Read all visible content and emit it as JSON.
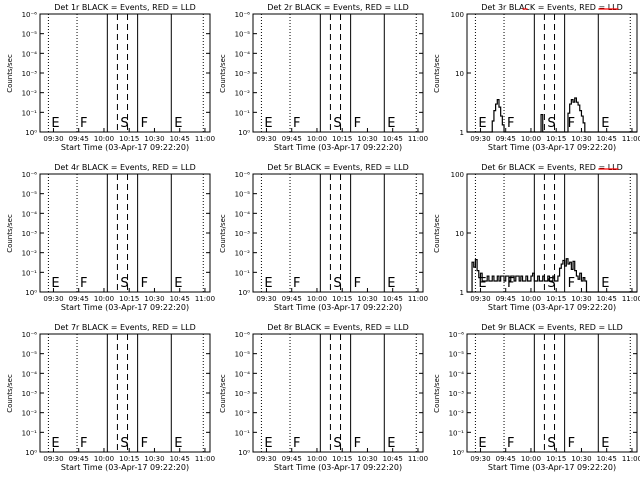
{
  "chart_data": {
    "type": "line",
    "x_unit": "clock time (UT)",
    "xticks": [
      "09:30",
      "09:45",
      "10:00",
      "10:15",
      "10:30",
      "10:45",
      "11:00"
    ],
    "xlabel": "Start Time (03-Apr-17 09:22:20)",
    "ylabel": "Counts/sec",
    "colors": {
      "events": "#000000",
      "lld": "#ff0000"
    },
    "event_marks": [
      {
        "time": "09:27",
        "label": "E",
        "style": "dotted"
      },
      {
        "time": "09:44",
        "label": "F",
        "style": "dotted"
      },
      {
        "time": "10:02",
        "label": "",
        "style": "solid"
      },
      {
        "time": "10:08",
        "label": "S",
        "style": "dashed"
      },
      {
        "time": "10:14",
        "label": "",
        "style": "dashed"
      },
      {
        "time": "10:20",
        "label": "F",
        "style": "solid"
      },
      {
        "time": "10:40",
        "label": "E",
        "style": "solid"
      },
      {
        "time": "10:59",
        "label": "",
        "style": "dotted"
      }
    ],
    "panels": [
      {
        "title": "Det 1r BLACK = Events, RED = LLD",
        "scale": "log",
        "yticks": [
          "10⁰",
          "10⁻¹",
          "10⁻²",
          "10⁻³",
          "10⁻⁴",
          "10⁻⁵",
          "10⁻⁶"
        ],
        "events": [],
        "lld": []
      },
      {
        "title": "Det 2r BLACK = Events, RED = LLD",
        "scale": "log",
        "yticks": [
          "10⁰",
          "10⁻¹",
          "10⁻²",
          "10⁻³",
          "10⁻⁴",
          "10⁻⁵",
          "10⁻⁶"
        ],
        "events": [],
        "lld": []
      },
      {
        "title": "Det 3r BLACK = Events, RED = LLD",
        "scale": "log",
        "ylim": [
          1,
          100
        ],
        "yticks": [
          "1",
          "10",
          "100"
        ],
        "events": [
          [
            "09:22",
            1.0
          ],
          [
            "09:36",
            1.0
          ],
          [
            "09:37",
            1.5
          ],
          [
            "09:38",
            2.2
          ],
          [
            "09:39",
            2.8
          ],
          [
            "09:40",
            3.3
          ],
          [
            "09:41",
            2.5
          ],
          [
            "09:42",
            1.8
          ],
          [
            "09:43",
            1.3
          ],
          [
            "09:44",
            1.0
          ],
          [
            "10:05",
            1.0
          ],
          [
            "10:06",
            1.9
          ],
          [
            "10:07",
            1.0
          ],
          [
            "10:21",
            1.0
          ],
          [
            "10:22",
            2.0
          ],
          [
            "10:23",
            2.8
          ],
          [
            "10:24",
            3.3
          ],
          [
            "10:25",
            3.0
          ],
          [
            "10:26",
            3.5
          ],
          [
            "10:27",
            3.0
          ],
          [
            "10:28",
            2.7
          ],
          [
            "10:29",
            2.2
          ],
          [
            "10:30",
            1.8
          ],
          [
            "10:31",
            1.4
          ],
          [
            "10:32",
            1.0
          ],
          [
            "11:03",
            1.0
          ]
        ],
        "lld": [
          [
            "09:55",
            100
          ],
          [
            "09:58",
            100
          ],
          [
            "10:40",
            100
          ],
          [
            "10:52",
            100
          ]
        ]
      },
      {
        "title": "Det 4r BLACK = Events, RED = LLD",
        "scale": "log",
        "yticks": [
          "10⁰",
          "10⁻¹",
          "10⁻²",
          "10⁻³",
          "10⁻⁴",
          "10⁻⁵",
          "10⁻⁶"
        ],
        "events": [],
        "lld": []
      },
      {
        "title": "Det 5r BLACK = Events, RED = LLD",
        "scale": "log",
        "yticks": [
          "10⁰",
          "10⁻¹",
          "10⁻²",
          "10⁻³",
          "10⁻⁴",
          "10⁻⁵",
          "10⁻⁶"
        ],
        "events": [],
        "lld": []
      },
      {
        "title": "Det 6r BLACK = Events, RED = LLD",
        "scale": "log",
        "ylim": [
          1,
          100
        ],
        "yticks": [
          "1",
          "10",
          "100"
        ],
        "events": [
          [
            "09:22",
            1.0
          ],
          [
            "09:24",
            1.0
          ],
          [
            "09:25",
            3.0
          ],
          [
            "09:26",
            2.5
          ],
          [
            "09:27",
            3.3
          ],
          [
            "09:28",
            2.2
          ],
          [
            "09:29",
            1.7
          ],
          [
            "09:30",
            2.0
          ],
          [
            "09:31",
            1.5
          ],
          [
            "09:33",
            1.5
          ],
          [
            "09:34",
            1.8
          ],
          [
            "09:35",
            1.5
          ],
          [
            "09:37",
            1.8
          ],
          [
            "09:38",
            1.5
          ],
          [
            "09:40",
            1.8
          ],
          [
            "09:41",
            1.5
          ],
          [
            "09:42",
            1.8
          ],
          [
            "09:44",
            1.5
          ],
          [
            "09:45",
            1.8
          ],
          [
            "09:47",
            1.5
          ],
          [
            "09:48",
            1.8
          ],
          [
            "09:50",
            1.5
          ],
          [
            "09:51",
            1.8
          ],
          [
            "09:53",
            1.5
          ],
          [
            "09:54",
            1.8
          ],
          [
            "09:55",
            1.5
          ],
          [
            "09:57",
            1.8
          ],
          [
            "09:58",
            1.5
          ],
          [
            "10:00",
            1.8
          ],
          [
            "10:01",
            2.0
          ],
          [
            "10:02",
            1.5
          ],
          [
            "10:04",
            1.8
          ],
          [
            "10:05",
            1.5
          ],
          [
            "10:07",
            1.8
          ],
          [
            "10:08",
            1.5
          ],
          [
            "10:10",
            1.8
          ],
          [
            "10:11",
            1.5
          ],
          [
            "10:13",
            1.8
          ],
          [
            "10:14",
            1.5
          ],
          [
            "10:16",
            1.8
          ],
          [
            "10:17",
            2.4
          ],
          [
            "10:18",
            2.8
          ],
          [
            "10:19",
            3.2
          ],
          [
            "10:20",
            2.6
          ],
          [
            "10:21",
            3.4
          ],
          [
            "10:22",
            2.8
          ],
          [
            "10:23",
            3.0
          ],
          [
            "10:24",
            2.3
          ],
          [
            "10:25",
            3.1
          ],
          [
            "10:26",
            2.2
          ],
          [
            "10:27",
            1.8
          ],
          [
            "10:28",
            1.6
          ],
          [
            "10:29",
            2.0
          ],
          [
            "10:30",
            1.5
          ],
          [
            "10:31",
            1.7
          ],
          [
            "10:32",
            1.5
          ],
          [
            "10:33",
            1.0
          ],
          [
            "11:03",
            1.0
          ]
        ],
        "lld": [
          [
            "10:40",
            100
          ],
          [
            "10:52",
            100
          ]
        ]
      },
      {
        "title": "Det 7r BLACK = Events, RED = LLD",
        "scale": "log",
        "yticks": [
          "10⁰",
          "10⁻¹",
          "10⁻²",
          "10⁻³",
          "10⁻⁴",
          "10⁻⁵",
          "10⁻⁶"
        ],
        "events": [],
        "lld": []
      },
      {
        "title": "Det 8r BLACK = Events, RED = LLD",
        "scale": "log",
        "yticks": [
          "10⁰",
          "10⁻¹",
          "10⁻²",
          "10⁻³",
          "10⁻⁴",
          "10⁻⁵",
          "10⁻⁶"
        ],
        "events": [],
        "lld": []
      },
      {
        "title": "Det 9r BLACK = Events, RED = LLD",
        "scale": "log",
        "yticks": [
          "10⁰",
          "10⁻¹",
          "10⁻²",
          "10⁻³",
          "10⁻⁴",
          "10⁻⁵",
          "10⁻⁶"
        ],
        "events": [],
        "lld": []
      }
    ]
  }
}
